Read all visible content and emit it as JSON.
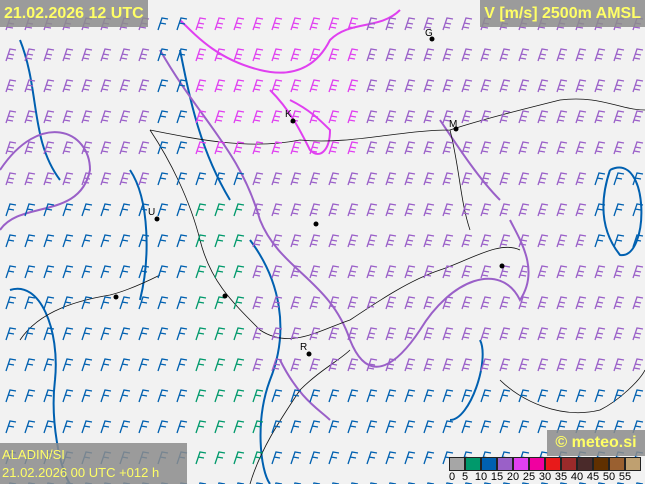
{
  "header": {
    "valid_time": "21.02.2026 12 UTC",
    "field": "V [m/s] 2500m AMSL"
  },
  "footer": {
    "model": "ALADIN/SI",
    "run": "21.02.2026 00 UTC +012 h",
    "credit": "© meteo.si"
  },
  "legend": {
    "ticks": [
      "0",
      "5",
      "10",
      "15",
      "20",
      "25",
      "30",
      "35",
      "40",
      "45",
      "50",
      "55"
    ],
    "colors": [
      "#a6a6a6",
      "#00996b",
      "#0060b0",
      "#9a60c8",
      "#e040f0",
      "#f000a0",
      "#e81a1a",
      "#9a2a2a",
      "#4a2a2a",
      "#603000",
      "#9a6030",
      "#bfa070"
    ]
  },
  "cities": [
    {
      "label": "G"
    },
    {
      "label": "K"
    },
    {
      "label": "M"
    },
    {
      "label": "U"
    },
    {
      "label": "R"
    }
  ]
}
